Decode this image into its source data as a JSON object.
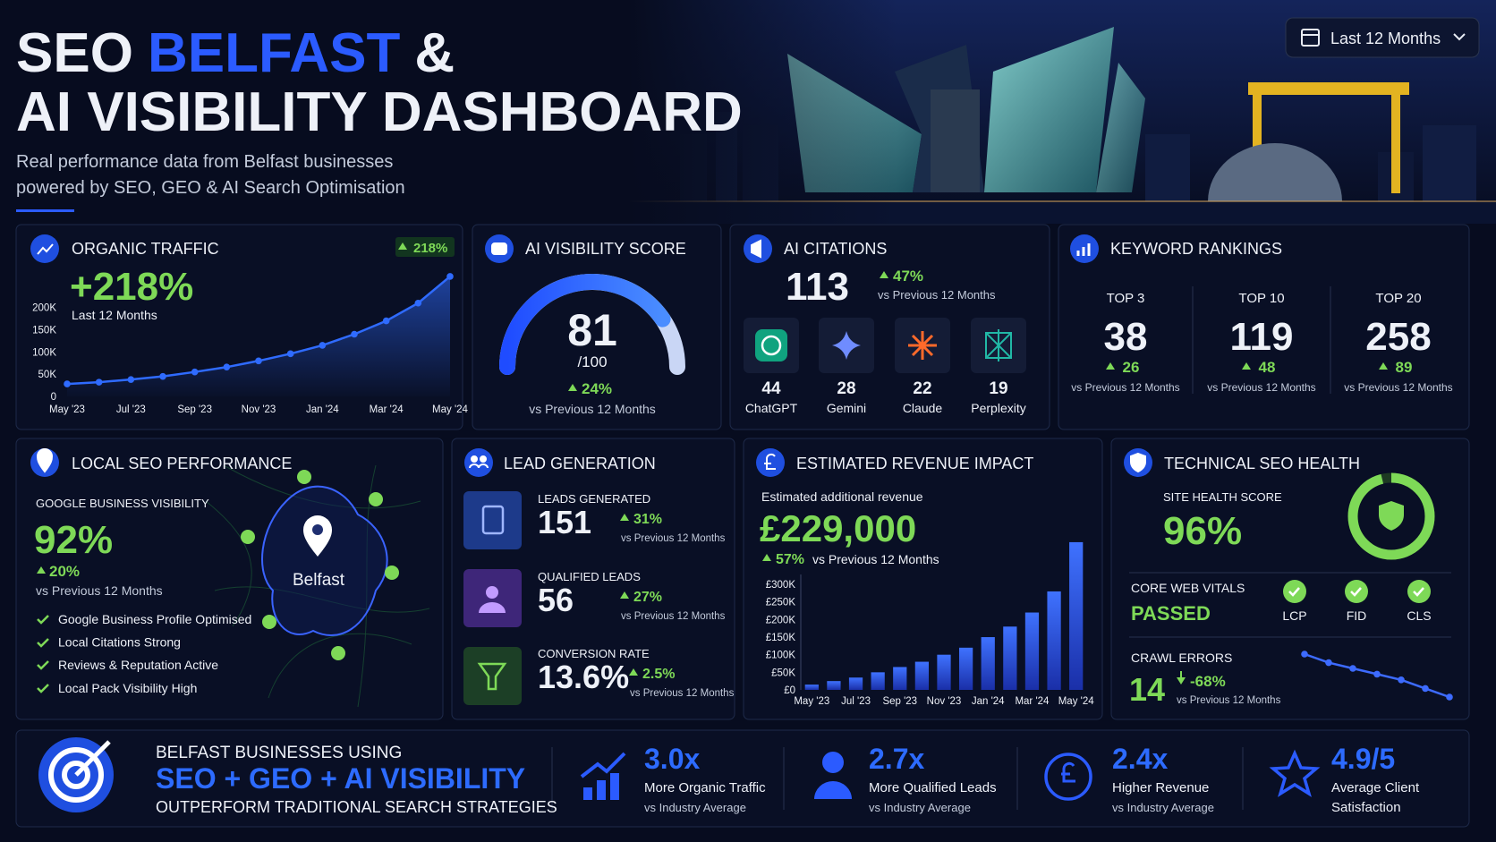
{
  "header": {
    "title_word1": "SEO",
    "title_highlight": "BELFAST",
    "title_word3": "&",
    "title_line2": "AI VISIBILITY DASHBOARD",
    "subtitle_line1": "Real performance data from Belfast businesses",
    "subtitle_line2": "powered by SEO, GEO & AI Search Optimisation",
    "date_range": "Last 12 Months"
  },
  "organic_traffic": {
    "title": "ORGANIC TRAFFIC",
    "badge": "218%",
    "headline": "+218%",
    "period": "Last 12 Months"
  },
  "ai_visibility": {
    "title": "AI VISIBILITY SCORE",
    "score": 81,
    "max": {
      "value": 100,
      "label": "/100"
    },
    "change": "24%",
    "comparison": "vs Previous 12 Months"
  },
  "ai_citations": {
    "title": "AI CITATIONS",
    "total": 113,
    "change": "47%",
    "comparison": "vs Previous 12 Months",
    "sources": [
      {
        "name": "ChatGPT",
        "count": 44
      },
      {
        "name": "Gemini",
        "count": 28
      },
      {
        "name": "Claude",
        "count": 22
      },
      {
        "name": "Perplexity",
        "count": 19
      }
    ]
  },
  "keyword_rankings": {
    "title": "KEYWORD RANKINGS",
    "tiers": [
      {
        "label": "TOP 3",
        "count": 38,
        "change": 26,
        "comparison": "vs Previous 12 Months"
      },
      {
        "label": "TOP 10",
        "count": 119,
        "change": 48,
        "comparison": "vs Previous 12 Months"
      },
      {
        "label": "TOP 20",
        "count": 258,
        "change": 89,
        "comparison": "vs Previous 12 Months"
      }
    ]
  },
  "local_seo": {
    "title": "LOCAL SEO PERFORMANCE",
    "metric_label": "GOOGLE BUSINESS VISIBILITY",
    "value": "92%",
    "change": "20%",
    "comparison": "vs Previous 12 Months",
    "checklist": [
      "Google Business Profile Optimised",
      "Local Citations Strong",
      "Reviews & Reputation Active",
      "Local Pack Visibility High"
    ],
    "map_label": "Belfast"
  },
  "lead_generation": {
    "title": "LEAD GENERATION",
    "metrics": [
      {
        "label": "LEADS GENERATED",
        "value": "151",
        "change": "31%",
        "comparison": "vs Previous 12 Months"
      },
      {
        "label": "QUALIFIED LEADS",
        "value": "56",
        "change": "27%",
        "comparison": "vs Previous 12 Months"
      },
      {
        "label": "CONVERSION RATE",
        "value": "13.6%",
        "change": "2.5%",
        "comparison": "vs Previous 12 Months"
      }
    ]
  },
  "revenue": {
    "title": "ESTIMATED REVENUE IMPACT",
    "caption": "Estimated additional revenue",
    "value": "£229,000",
    "change": "57%",
    "comparison": "vs Previous 12 Months"
  },
  "technical_seo": {
    "title": "TECHNICAL SEO HEALTH",
    "site_health_label": "SITE HEALTH SCORE",
    "score": {
      "value": 96,
      "label": "96%"
    },
    "core_web_vitals_label": "CORE WEB VITALS",
    "core_web_vitals_status": "PASSED",
    "vitals": [
      "LCP",
      "FID",
      "CLS"
    ],
    "crawl_errors_label": "CRAWL ERRORS",
    "crawl_errors": "14",
    "crawl_change": "-68%",
    "crawl_comparison": "vs Previous 12 Months"
  },
  "footer": {
    "line1": "BELFAST BUSINESSES USING",
    "line2": "SEO + GEO + AI VISIBILITY",
    "line3": "OUTPERFORM TRADITIONAL SEARCH STRATEGIES",
    "stats": [
      {
        "value": "3.0x",
        "label": "More Organic Traffic",
        "note": "vs Industry Average"
      },
      {
        "value": "2.7x",
        "label": "More Qualified Leads",
        "note": "vs Industry Average"
      },
      {
        "value": "2.4x",
        "label": "Higher Revenue",
        "note": "vs Industry Average"
      },
      {
        "value": "4.9/5",
        "label": "Average Client",
        "note": "Satisfaction"
      }
    ]
  },
  "chart_data": [
    {
      "type": "line",
      "color": "#2f6bff",
      "categories": [
        "May '23",
        null,
        "Jul '23",
        null,
        "Sep '23",
        null,
        "Nov '23",
        null,
        "Jan '24",
        null,
        "Mar '24",
        null,
        "May '24"
      ],
      "values": [
        28000,
        32000,
        38000,
        45000,
        55000,
        66000,
        80000,
        96000,
        115000,
        140000,
        170000,
        210000,
        270000
      ],
      "ylim": [
        0,
        280000
      ],
      "yticks": [
        0,
        {
          "value": 50000,
          "label": "50K"
        },
        {
          "value": 100000,
          "label": "100K"
        },
        {
          "value": 150000,
          "label": "150K"
        },
        {
          "value": 200000,
          "label": "200K"
        }
      ]
    },
    {
      "type": "bar",
      "color": "#2f5cff",
      "categories": [
        "May '23",
        null,
        "Jul '23",
        null,
        "Sep '23",
        null,
        "Nov '23",
        null,
        "Jan '24",
        null,
        "Mar '24",
        null,
        "May '24"
      ],
      "values": [
        15000,
        25000,
        35000,
        50000,
        65000,
        80000,
        100000,
        120000,
        150000,
        180000,
        220000,
        280000,
        420000
      ],
      "ylim": [
        0,
        430000
      ],
      "yticks": [
        {
          "value": 0,
          "label": "£0"
        },
        {
          "value": 50000,
          "label": "£50K"
        },
        {
          "value": 100000,
          "label": "£100K"
        },
        {
          "value": 150000,
          "label": "£150K"
        },
        {
          "value": 200000,
          "label": "£200K"
        },
        {
          "value": 250000,
          "label": "£250K"
        },
        {
          "value": 300000,
          "label": "£300K"
        }
      ]
    },
    {
      "type": "line",
      "color": "#3d6bff",
      "values": [
        44,
        38,
        34,
        30,
        26,
        20,
        14
      ]
    }
  ]
}
